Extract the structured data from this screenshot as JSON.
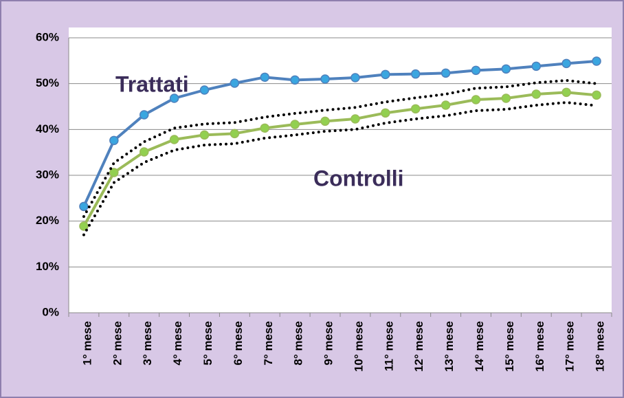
{
  "chart_data": {
    "type": "line",
    "categories": [
      "1° mese",
      "2° mese",
      "3° mese",
      "4° mese",
      "5° mese",
      "6° mese",
      "7° mese",
      "8° mese",
      "9° mese",
      "10° mese",
      "11° mese",
      "12° mese",
      "13° mese",
      "14° mese",
      "15° mese",
      "16° mese",
      "17° mese",
      "18° mese"
    ],
    "series": [
      {
        "name": "Trattati",
        "color": "#4f81bd",
        "marker_color": "#3aa6e0",
        "style": "solid",
        "values": [
          23.2,
          37.6,
          43.2,
          46.8,
          48.6,
          50.1,
          51.4,
          50.8,
          51,
          51.3,
          52,
          52.1,
          52.3,
          52.9,
          53.2,
          53.8,
          54.4,
          54.9
        ]
      },
      {
        "name": "Controlli",
        "color": "#9bbb59",
        "marker_color": "#92d050",
        "style": "solid",
        "values": [
          18.9,
          30.6,
          35.1,
          37.8,
          38.8,
          39.1,
          40.3,
          41.1,
          41.8,
          42.3,
          43.6,
          44.5,
          45.3,
          46.5,
          46.8,
          47.7,
          48.1,
          47.5
        ]
      },
      {
        "color": "#000000",
        "style": "dotted",
        "values": [
          21,
          32.7,
          37.3,
          40.3,
          41.2,
          41.5,
          42.7,
          43.5,
          44.2,
          44.8,
          46,
          46.9,
          47.7,
          49,
          49.3,
          50.2,
          50.7,
          50
        ]
      },
      {
        "color": "#000000",
        "style": "dotted",
        "values": [
          17,
          28.4,
          32.8,
          35.5,
          36.6,
          36.9,
          38.1,
          38.8,
          39.6,
          40,
          41.4,
          42.3,
          43,
          44.1,
          44.4,
          45.3,
          45.9,
          45.2
        ]
      }
    ],
    "ylim": [
      0,
      60
    ],
    "yticks": [
      {
        "value": 0,
        "label": "0%"
      },
      {
        "value": 10,
        "label": "10%"
      },
      {
        "value": 20,
        "label": "20%"
      },
      {
        "value": 30,
        "label": "30%"
      },
      {
        "value": 40,
        "label": "40%"
      },
      {
        "value": 50,
        "label": "50%"
      },
      {
        "value": 60,
        "label": "60%"
      }
    ],
    "grid": true
  }
}
